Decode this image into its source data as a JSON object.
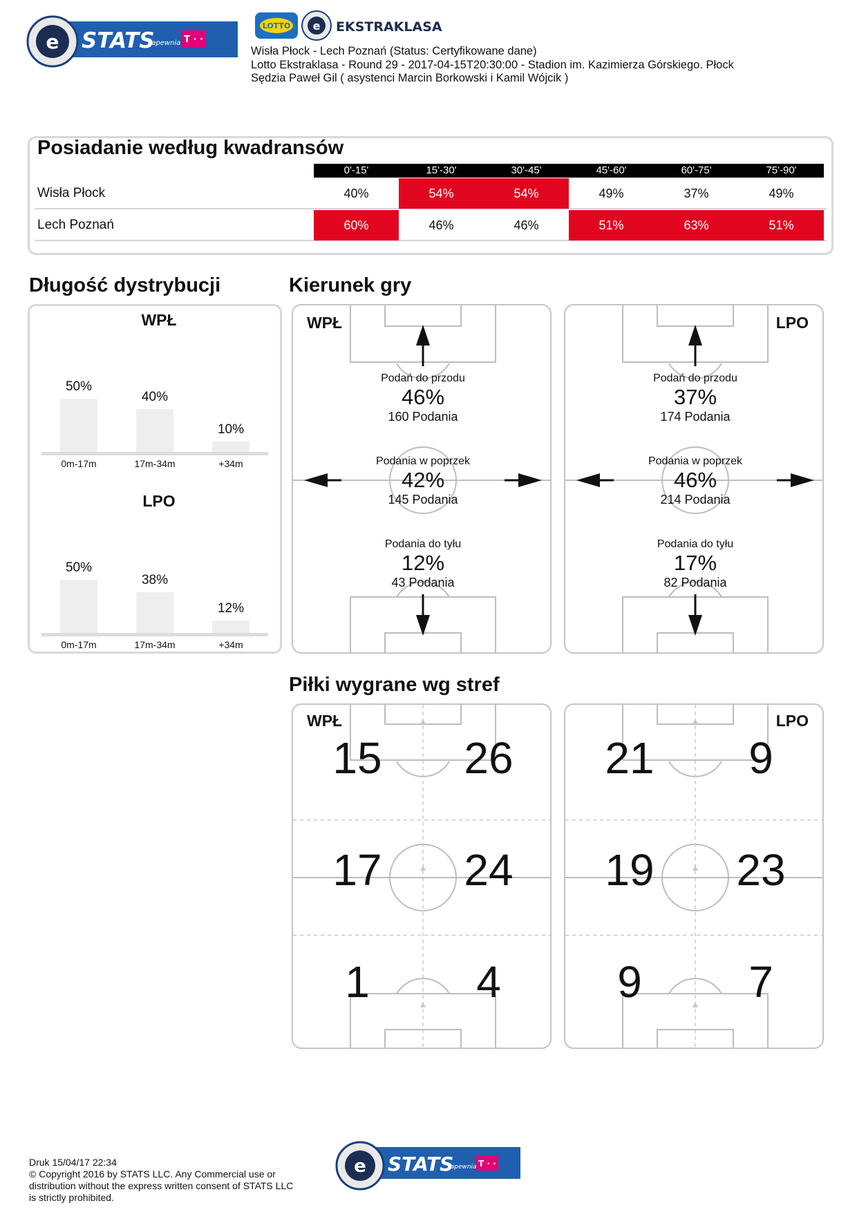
{
  "header": {
    "stats_logo_text": "STATS",
    "sponsor_word": "zapewnia",
    "telekom_mark": "T · ·",
    "lotto_text": "LOTTO",
    "ekstraklasa_text": "EKSTRAKLASA",
    "match_line": "Wisła Płock - Lech Poznań (Status: Certyfikowane dane)",
    "details_line": "Lotto Ekstraklasa - Round 29 - 2017-04-15T20:30:00 - Stadion im. Kazimierza Górskiego. Płock",
    "referee_line": "Sędzia Paweł Gil ( asystenci Marcin Borkowski i Kamil Wójcik )"
  },
  "colors": {
    "accent_red": "#e2051f",
    "header_black": "#000000",
    "stats_blue": "#1f5fae",
    "telekom_magenta": "#e20074"
  },
  "possession": {
    "title": "Posiadanie według kwadransów",
    "periods": [
      "0'-15'",
      "15'-30'",
      "30'-45'",
      "45'-60'",
      "60'-75'",
      "75'-90'"
    ],
    "rows": [
      {
        "team": "Wisła Płock",
        "values": [
          "40%",
          "54%",
          "54%",
          "49%",
          "37%",
          "49%"
        ],
        "highlight": [
          false,
          true,
          true,
          false,
          false,
          false
        ]
      },
      {
        "team": "Lech Poznań",
        "values": [
          "60%",
          "46%",
          "46%",
          "51%",
          "63%",
          "51%"
        ],
        "highlight": [
          true,
          false,
          false,
          true,
          true,
          true
        ]
      }
    ]
  },
  "distribution": {
    "title": "Długość dystrybucji",
    "labels": [
      "0m-17m",
      "17m-34m",
      "+34m"
    ],
    "teams": [
      {
        "name": "WPŁ",
        "values": [
          "50%",
          "40%",
          "10%"
        ],
        "fraction": [
          0.5,
          0.4,
          0.1
        ]
      },
      {
        "name": "LPO",
        "values": [
          "50%",
          "38%",
          "12%"
        ],
        "fraction": [
          0.5,
          0.38,
          0.12
        ]
      }
    ]
  },
  "direction": {
    "title": "Kierunek gry",
    "teams": [
      {
        "name": "WPŁ",
        "forward": {
          "label": "Podań do przodu",
          "pct": "46%",
          "count": "160 Podania"
        },
        "sideways": {
          "label": "Podania w poprzek",
          "pct": "42%",
          "count": "145 Podania"
        },
        "backward": {
          "label": "Podania do tyłu",
          "pct": "12%",
          "count": "43 Podania"
        }
      },
      {
        "name": "LPO",
        "forward": {
          "label": "Podań do przodu",
          "pct": "37%",
          "count": "174 Podania"
        },
        "sideways": {
          "label": "Podania w poprzek",
          "pct": "46%",
          "count": "214 Podania"
        },
        "backward": {
          "label": "Podania do tyłu",
          "pct": "17%",
          "count": "82 Podania"
        }
      }
    ]
  },
  "zones": {
    "title": "Piłki wygrane wg stref",
    "teams": [
      {
        "name": "WPŁ",
        "grid": [
          [
            "15",
            "26"
          ],
          [
            "17",
            "24"
          ],
          [
            "1",
            "4"
          ]
        ]
      },
      {
        "name": "LPO",
        "grid": [
          [
            "21",
            "9"
          ],
          [
            "19",
            "23"
          ],
          [
            "9",
            "7"
          ]
        ]
      }
    ]
  },
  "footer": {
    "print_line": "Druk 15/04/17 22:34",
    "copyright_1": "© Copyright 2016 by STATS LLC. Any Commercial use or",
    "copyright_2": "distribution without the express written consent of STATS LLC",
    "copyright_3": "is strictly prohibited."
  }
}
